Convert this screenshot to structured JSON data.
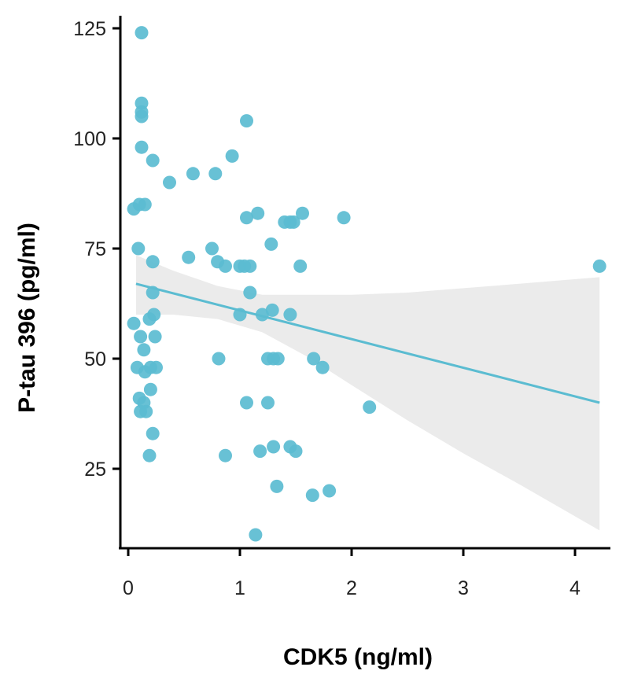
{
  "chart_data": {
    "type": "scatter",
    "xlabel": "CDK5 (ng/ml)",
    "ylabel": "P-tau 396 (pg/ml)",
    "xlim": [
      -0.08,
      4.35
    ],
    "ylim": [
      9,
      128
    ],
    "xticks": [
      0,
      1,
      2,
      3,
      4
    ],
    "yticks": [
      25,
      50,
      75,
      100,
      125
    ],
    "grid": false,
    "point_color": "#5bbcd1",
    "line_color": "#5bbcd1",
    "band_color": "#ebebeb",
    "points": [
      [
        0.12,
        124
      ],
      [
        0.12,
        108
      ],
      [
        0.12,
        106
      ],
      [
        0.12,
        105
      ],
      [
        0.12,
        98
      ],
      [
        0.22,
        95
      ],
      [
        0.37,
        90
      ],
      [
        0.58,
        92
      ],
      [
        0.78,
        92
      ],
      [
        0.93,
        96
      ],
      [
        1.06,
        104
      ],
      [
        0.1,
        85
      ],
      [
        0.15,
        85
      ],
      [
        0.05,
        84
      ],
      [
        0.09,
        75
      ],
      [
        0.22,
        72
      ],
      [
        0.54,
        73
      ],
      [
        0.75,
        75
      ],
      [
        0.8,
        72
      ],
      [
        0.87,
        71
      ],
      [
        1.0,
        71
      ],
      [
        1.04,
        71
      ],
      [
        1.09,
        71
      ],
      [
        1.06,
        82
      ],
      [
        1.16,
        83
      ],
      [
        1.28,
        76
      ],
      [
        1.4,
        81
      ],
      [
        1.45,
        81
      ],
      [
        1.48,
        81
      ],
      [
        1.56,
        83
      ],
      [
        1.54,
        71
      ],
      [
        1.93,
        82
      ],
      [
        0.22,
        65
      ],
      [
        0.23,
        60
      ],
      [
        0.19,
        59
      ],
      [
        0.05,
        58
      ],
      [
        0.11,
        55
      ],
      [
        0.24,
        55
      ],
      [
        0.14,
        52
      ],
      [
        0.08,
        48
      ],
      [
        0.15,
        47
      ],
      [
        0.2,
        48
      ],
      [
        0.25,
        48
      ],
      [
        0.1,
        41
      ],
      [
        0.14,
        40
      ],
      [
        0.11,
        38
      ],
      [
        0.16,
        38
      ],
      [
        0.2,
        43
      ],
      [
        0.22,
        33
      ],
      [
        0.19,
        28
      ],
      [
        1.0,
        60
      ],
      [
        1.09,
        65
      ],
      [
        1.2,
        60
      ],
      [
        1.29,
        61
      ],
      [
        1.45,
        60
      ],
      [
        0.81,
        50
      ],
      [
        1.25,
        50
      ],
      [
        1.3,
        50
      ],
      [
        1.34,
        50
      ],
      [
        1.66,
        50
      ],
      [
        1.74,
        48
      ],
      [
        1.06,
        40
      ],
      [
        1.25,
        40
      ],
      [
        2.16,
        39
      ],
      [
        0.87,
        28
      ],
      [
        1.18,
        29
      ],
      [
        1.3,
        30
      ],
      [
        1.45,
        30
      ],
      [
        1.5,
        29
      ],
      [
        1.33,
        21
      ],
      [
        1.65,
        19
      ],
      [
        1.8,
        20
      ],
      [
        1.14,
        10
      ],
      [
        4.22,
        71
      ]
    ],
    "regression": {
      "x_start": 0.07,
      "x_end": 4.22,
      "y_start": 67,
      "y_end": 40,
      "band": [
        {
          "x": 0.07,
          "lower": 60,
          "upper": 73.5
        },
        {
          "x": 0.4,
          "lower": 60,
          "upper": 70
        },
        {
          "x": 0.8,
          "lower": 59,
          "upper": 66.5
        },
        {
          "x": 1.2,
          "lower": 56,
          "upper": 64.5
        },
        {
          "x": 1.6,
          "lower": 50.5,
          "upper": 64.5
        },
        {
          "x": 2.0,
          "lower": 44,
          "upper": 64.5
        },
        {
          "x": 2.5,
          "lower": 36,
          "upper": 65
        },
        {
          "x": 3.0,
          "lower": 28.5,
          "upper": 66
        },
        {
          "x": 3.5,
          "lower": 21.5,
          "upper": 67
        },
        {
          "x": 4.22,
          "lower": 11,
          "upper": 68.5
        }
      ]
    }
  }
}
